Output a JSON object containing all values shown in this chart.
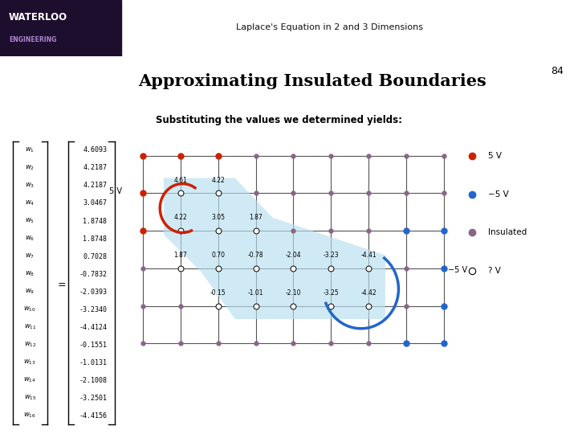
{
  "title_top": "Laplace's Equation in 2 and 3 Dimensions",
  "title_main": "Approximating Insulated Boundaries",
  "page_number": "84",
  "subtitle": "Substituting the values we determined yields:",
  "matrix_labels": [
    "w_1",
    "w_2",
    "w_3",
    "w_4",
    "w_5",
    "w_6",
    "w_7",
    "w_8",
    "w_9",
    "w_{10}",
    "w_{11}",
    "w_{12}",
    "w_{13}",
    "w_{14}",
    "w_{15}",
    "w_{16}"
  ],
  "matrix_values": [
    "4.6093",
    "4.2187",
    "4.2187",
    "3.0467",
    "1.8748",
    "1.8748",
    "0.7028",
    "-0.7832",
    "-2.0393",
    "-3.2340",
    "-4.4124",
    "-0.1551",
    "-1.0131",
    "-2.1008",
    "-3.2501",
    "-4.4156"
  ],
  "bg_color": "#ffffff",
  "dot_5v_color": "#cc2200",
  "dot_neg5v_color": "#2266cc",
  "dot_insulated_color": "#886688",
  "legend_5v": "5 V",
  "legend_neg5v": "−5 V",
  "legend_insulated": "Insulated",
  "legend_unknown": "? V",
  "grid_cols": 9,
  "grid_rows": 6
}
